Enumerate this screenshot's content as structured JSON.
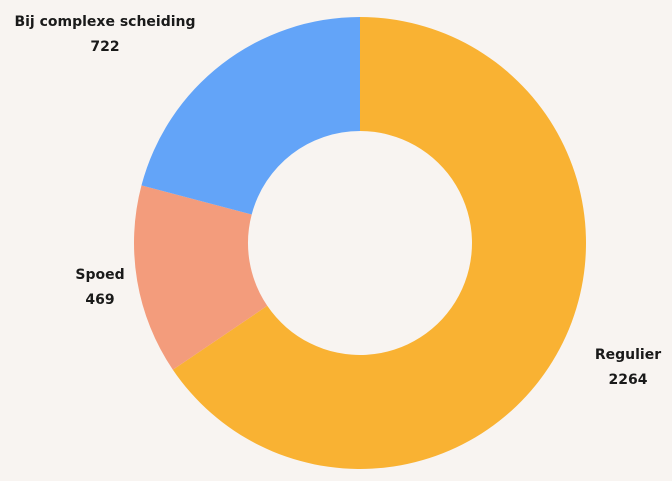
{
  "chart_data": {
    "type": "donut",
    "categories": [
      "Regulier",
      "Spoed",
      "Bij complexe scheiding"
    ],
    "values": [
      2264,
      469,
      722
    ],
    "colors": [
      "#f9b233",
      "#f39c7c",
      "#63a4f8"
    ]
  }
}
